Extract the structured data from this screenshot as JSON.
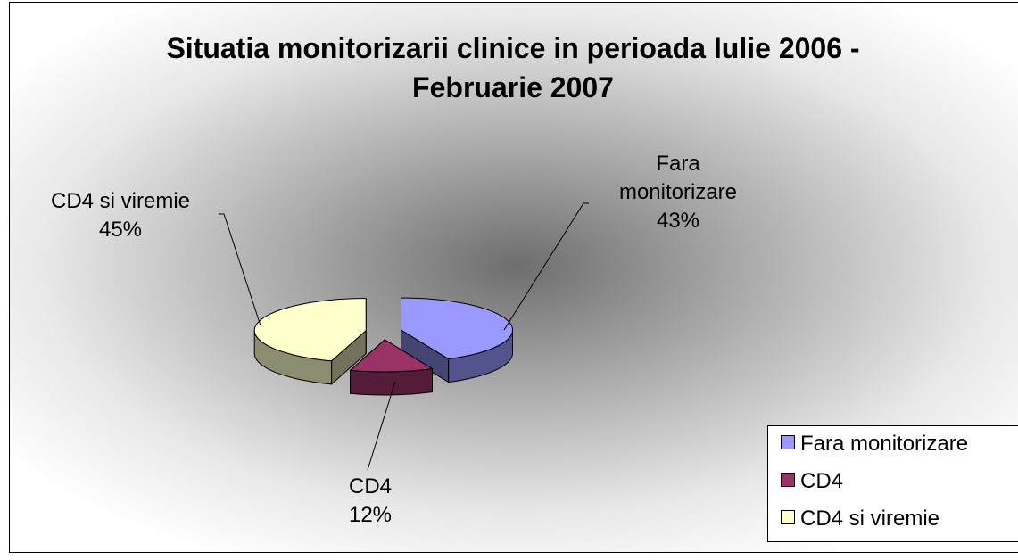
{
  "chart_data": {
    "type": "pie3d",
    "title": "Situatia monitorizarii clinice in perioada Iulie 2006 - Februarie 2007",
    "categories": [
      "Fara monitorizare",
      "CD4",
      "CD4 si viremie"
    ],
    "values": [
      43,
      12,
      45
    ],
    "value_labels": [
      "43%",
      "12%",
      "45%"
    ],
    "colors": [
      "#9999ff",
      "#993366",
      "#ffffcc"
    ],
    "legend": "bottom-right"
  }
}
